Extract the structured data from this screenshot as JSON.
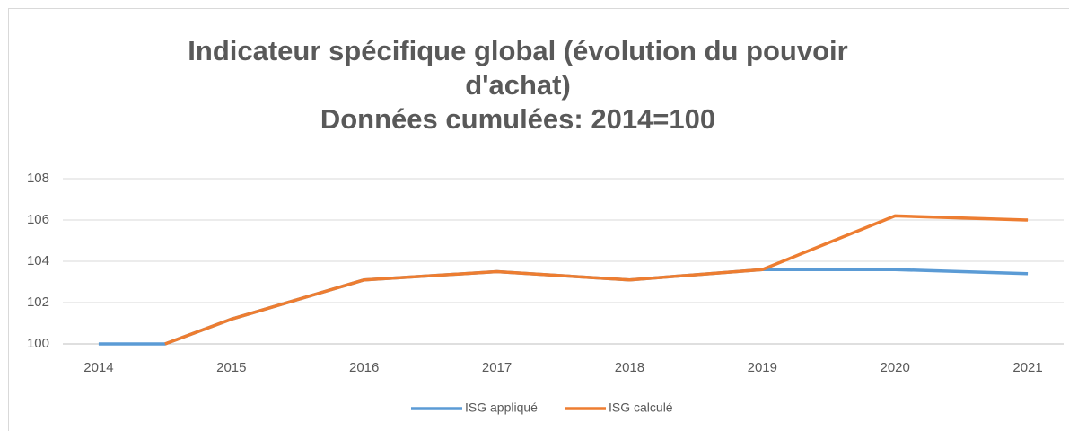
{
  "chart_data": {
    "type": "line",
    "title": "Indicateur spécifique global (évolution du pouvoir d'achat)",
    "subtitle": "Données cumulées: 2014=100",
    "x": [
      2014,
      2014.5,
      2015,
      2016,
      2017,
      2018,
      2019,
      2020,
      2021
    ],
    "series": [
      {
        "name": "ISG appliqué",
        "color": "#5b9bd5",
        "values": [
          100,
          100,
          101.2,
          103.1,
          103.5,
          103.1,
          103.6,
          103.6,
          103.4
        ]
      },
      {
        "name": "ISG calculé",
        "color": "#ed7d31",
        "values": [
          null,
          100,
          101.2,
          103.1,
          103.5,
          103.1,
          103.6,
          106.2,
          106.0
        ]
      }
    ],
    "xlim": [
      2013.73,
      2021.27
    ],
    "xticks": [
      2014,
      2015,
      2016,
      2017,
      2018,
      2019,
      2020,
      2021
    ],
    "ylim": [
      100,
      108
    ],
    "yticks": [
      100,
      102,
      104,
      106,
      108
    ],
    "grid": true,
    "legend": "bottom"
  }
}
